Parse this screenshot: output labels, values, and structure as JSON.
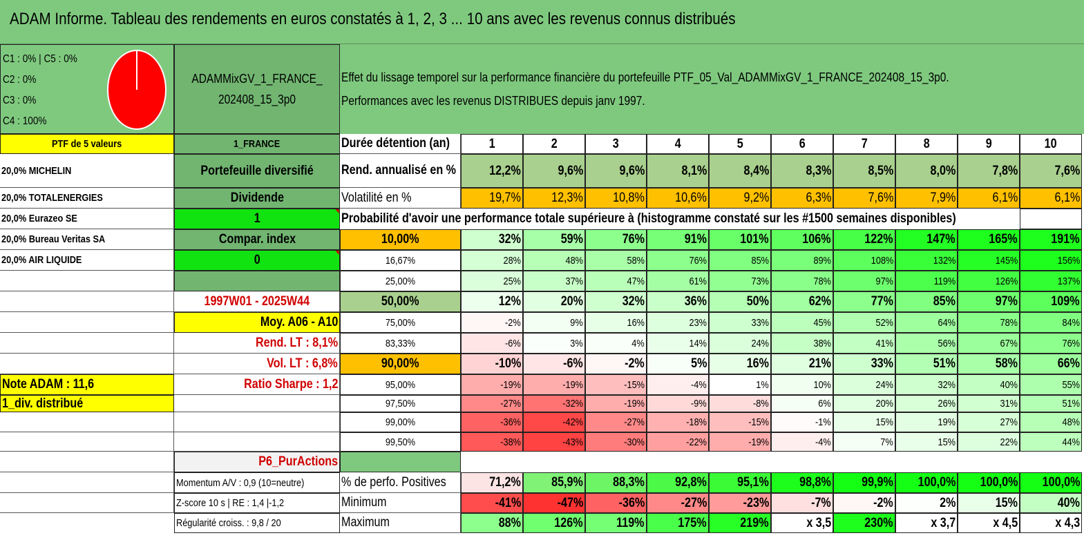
{
  "title": "ADAM Informe. Tableau des rendements en euros constatés à 1, 2, 3 ... 10 ans avec les revenus connus distribués",
  "composition": {
    "labels": [
      "C1 : 0% | C5 : 0%",
      "C2 : 0%",
      "C3 : 0%",
      "C4 : 100%"
    ],
    "pie_slices": [
      0,
      0,
      0,
      100,
      0
    ],
    "pie_colors": [
      "#ffffff",
      "#ffffff",
      "#ffffff",
      "#ff0000",
      "#ffffff"
    ]
  },
  "portfolio": {
    "name": "ADAMMixGV_1_FRANCE_202408_15_3p0",
    "ptf_header": "PTF de 5 valeurs",
    "market": "1_FRANCE",
    "holdings": [
      "20,0% MICHELIN",
      "20,0% TOTALENERGIES",
      "20,0% Eurazeo SE",
      "20,0% Bureau Veritas SA",
      "20,0% AIR LIQUIDE"
    ],
    "type": "Portefeuille diversifié",
    "dividend_label": "Dividende",
    "dividend_value": "1",
    "index_label": "Compar. index",
    "index_value": "0",
    "period": "1997W01 - 2025W44",
    "moy": "Moy. A06 - A10",
    "rend_lt": "Rend. LT : 8,1%",
    "vol_lt": "Vol. LT : 6,8%",
    "sharpe": "Ratio Sharpe : 1,2",
    "note": "Note ADAM : 11,6",
    "div_mode": "1_div. distribué",
    "category": "P6_PurActions",
    "momentum": "Momentum A/V : 0,9 (10=neutre)",
    "zscore": "Z-score 10 s | RE : 1,4 |-1,2",
    "regularite": "Régularité croiss. : 9,8 / 20"
  },
  "description": {
    "line1": "Effet du lissage temporel sur la performance financière du portefeuille PTF_05_Val_ADAMMixGV_1_FRANCE_202408_15_3p0.",
    "line2": "Performances avec les revenus DISTRIBUES depuis janv 1997."
  },
  "table": {
    "header_label": "Durée détention (an)",
    "years": [
      "1",
      "2",
      "3",
      "4",
      "5",
      "6",
      "7",
      "8",
      "9",
      "10"
    ],
    "rend_label": "Rend. annualisé en %",
    "rend": [
      "12,2%",
      "9,6%",
      "9,6%",
      "8,1%",
      "8,4%",
      "8,3%",
      "8,5%",
      "8,0%",
      "7,8%",
      "7,6%"
    ],
    "vol_label": "Volatilité en %",
    "vol": [
      "19,7%",
      "12,3%",
      "10,8%",
      "10,6%",
      "9,2%",
      "6,3%",
      "7,6%",
      "7,9%",
      "6,1%",
      "6,1%"
    ],
    "prob_title": "Probabilité d'avoir une performance totale supérieure à (histogramme constaté sur les #1500 semaines disponibles)",
    "prob_rows": [
      {
        "label": "10,00%",
        "values": [
          "32%",
          "59%",
          "76%",
          "91%",
          "101%",
          "106%",
          "122%",
          "147%",
          "165%",
          "191%"
        ]
      },
      {
        "label": "16,67%",
        "values": [
          "28%",
          "48%",
          "58%",
          "76%",
          "85%",
          "89%",
          "108%",
          "132%",
          "145%",
          "156%"
        ]
      },
      {
        "label": "25,00%",
        "values": [
          "25%",
          "37%",
          "47%",
          "61%",
          "73%",
          "78%",
          "97%",
          "119%",
          "126%",
          "137%"
        ]
      },
      {
        "label": "50,00%",
        "values": [
          "12%",
          "20%",
          "32%",
          "36%",
          "50%",
          "62%",
          "77%",
          "85%",
          "97%",
          "109%"
        ]
      },
      {
        "label": "75,00%",
        "values": [
          "-2%",
          "9%",
          "16%",
          "23%",
          "33%",
          "45%",
          "52%",
          "64%",
          "78%",
          "84%"
        ]
      },
      {
        "label": "83,33%",
        "values": [
          "-6%",
          "3%",
          "4%",
          "14%",
          "24%",
          "38%",
          "41%",
          "56%",
          "67%",
          "76%"
        ]
      },
      {
        "label": "90,00%",
        "values": [
          "-10%",
          "-6%",
          "-2%",
          "5%",
          "16%",
          "21%",
          "33%",
          "51%",
          "58%",
          "66%"
        ]
      },
      {
        "label": "95,00%",
        "values": [
          "-19%",
          "-19%",
          "-15%",
          "-4%",
          "1%",
          "10%",
          "24%",
          "32%",
          "40%",
          "55%"
        ]
      },
      {
        "label": "97,50%",
        "values": [
          "-27%",
          "-32%",
          "-19%",
          "-9%",
          "-8%",
          "6%",
          "20%",
          "26%",
          "31%",
          "51%"
        ]
      },
      {
        "label": "99,00%",
        "values": [
          "-36%",
          "-42%",
          "-27%",
          "-18%",
          "-15%",
          "-1%",
          "15%",
          "19%",
          "27%",
          "48%"
        ]
      },
      {
        "label": "99,50%",
        "values": [
          "-38%",
          "-43%",
          "-30%",
          "-22%",
          "-19%",
          "-4%",
          "7%",
          "15%",
          "22%",
          "44%"
        ]
      }
    ],
    "pos_label": "% de perfo. Positives",
    "pos": [
      "71,2%",
      "85,9%",
      "88,3%",
      "92,8%",
      "95,1%",
      "98,8%",
      "99,9%",
      "100,0%",
      "100,0%",
      "100,0%"
    ],
    "min_label": "Minimum",
    "min": [
      "-41%",
      "-47%",
      "-36%",
      "-27%",
      "-23%",
      "-7%",
      "-2%",
      "2%",
      "15%",
      "40%"
    ],
    "max_label": "Maximum",
    "max": [
      "88%",
      "126%",
      "119%",
      "175%",
      "219%",
      "x 3,5",
      "230%",
      "x 3,7",
      "x 4,5",
      "x 4,3"
    ]
  },
  "colors": {
    "title_green": "#7fc97f",
    "mid_green": "#71b571",
    "bright_green": "#11e311",
    "yellow": "#ffff00",
    "orange": "#ffc000",
    "red_text": "#d00000",
    "sage": "#a9d08e",
    "light_gray": "#f2f2f2"
  }
}
